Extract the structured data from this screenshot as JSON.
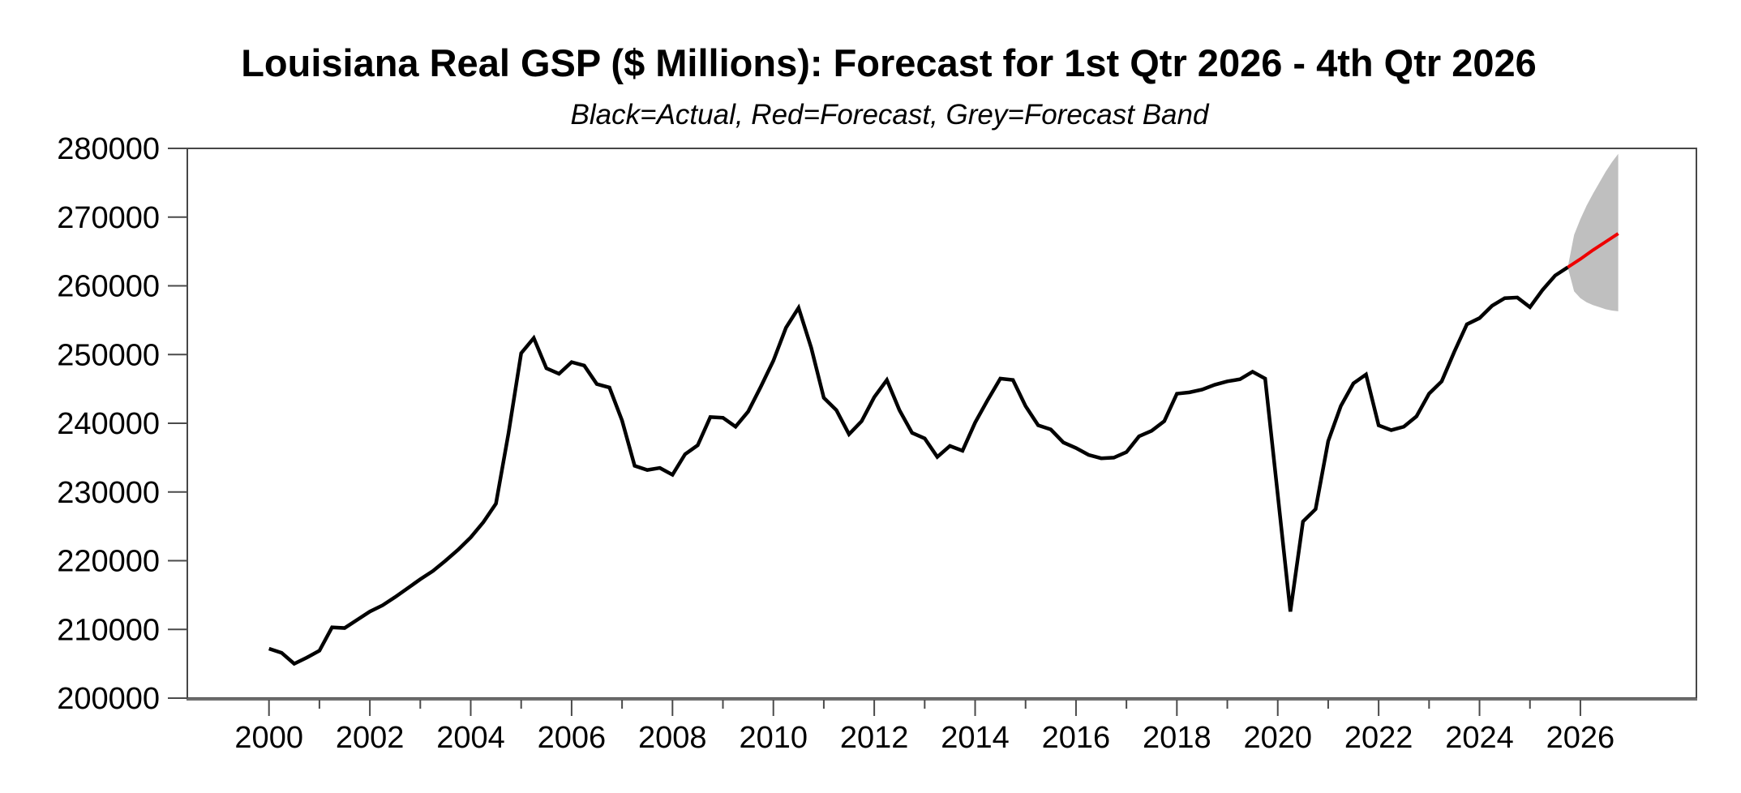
{
  "page": {
    "background": "#ffffff"
  },
  "header": {
    "title": "Louisiana Real GSP ($ Millions): Forecast for 1st Qtr 2026 - 4th Qtr 2026",
    "subtitle": "Black=Actual, Red=Forecast, Grey=Forecast Band"
  },
  "colors": {
    "actual": "#000000",
    "forecast": "#ee0000",
    "band": "#bfbfbf",
    "frame": "#474747",
    "baseline": "#6f6f6f",
    "tick": "#4a4a4a",
    "label": "#000000"
  },
  "chart_data": {
    "type": "line",
    "title": "Louisiana Real GSP ($ Millions): Forecast for 1st Qtr 2026 - 4th Qtr 2026",
    "legend_note": "Black=Actual, Red=Forecast, Grey=Forecast Band",
    "xlabel": "",
    "ylabel": "",
    "grid": "off",
    "y_axis": {
      "min": 200000,
      "max": 280000,
      "tick_step": 10000,
      "tick_labels": [
        "200000",
        "210000",
        "220000",
        "230000",
        "240000",
        "250000",
        "260000",
        "270000",
        "280000"
      ]
    },
    "x_axis": {
      "domain_start": 1998.381,
      "domain_end": 2028.3,
      "major_tick_years": [
        2000,
        2002,
        2004,
        2006,
        2008,
        2010,
        2012,
        2014,
        2016,
        2018,
        2020,
        2022,
        2024,
        2026
      ],
      "minor_tick_years": [
        2001,
        2003,
        2005,
        2007,
        2009,
        2011,
        2013,
        2015,
        2017,
        2019,
        2021,
        2023,
        2025
      ]
    },
    "series": [
      {
        "name": "Actual",
        "color": "#000000",
        "start": 2000.0,
        "interval_years": 0.25,
        "values": [
          207200,
          206600,
          205000,
          205900,
          206900,
          210300,
          210200,
          211400,
          212600,
          213500,
          214700,
          216000,
          217300,
          218500,
          220000,
          221600,
          223400,
          225600,
          228300,
          238600,
          250200,
          252400,
          248000,
          247200,
          248900,
          248400,
          245700,
          245200,
          240400,
          233800,
          233200,
          233500,
          232500,
          235500,
          236800,
          240900,
          240800,
          239500,
          241700,
          245300,
          249100,
          253900,
          256800,
          251000,
          243700,
          241900,
          238400,
          240300,
          243800,
          246300,
          241900,
          238600,
          237800,
          235100,
          236700,
          236000,
          240100,
          243400,
          246500,
          246300,
          242500,
          239700,
          239100,
          237200,
          236400,
          235400,
          234900,
          235000,
          235800,
          238100,
          238900,
          240300,
          244300,
          244500,
          244900,
          245600,
          246100,
          246400,
          247500,
          246500,
          229600,
          212600,
          225700,
          227500,
          237400,
          242500,
          245800,
          247100,
          239700,
          239000,
          239500,
          241000,
          244300,
          246100,
          250400,
          254400,
          255300,
          257100,
          258200,
          258300,
          256900,
          259400,
          261500,
          262700
        ]
      },
      {
        "name": "Forecast",
        "color": "#ee0000",
        "start": 2025.75,
        "interval_years": 0.25,
        "values": [
          262700,
          263900,
          265200,
          266400,
          267600
        ]
      },
      {
        "name": "Forecast Band",
        "color": "#bfbfbf",
        "start": 2025.75,
        "interval_years": 0.125,
        "upper": [
          262700,
          267400,
          269700,
          271700,
          273400,
          275000,
          276600,
          278000,
          279200
        ],
        "lower": [
          262700,
          259200,
          258200,
          257600,
          257200,
          256900,
          256600,
          256400,
          256300
        ]
      }
    ]
  }
}
